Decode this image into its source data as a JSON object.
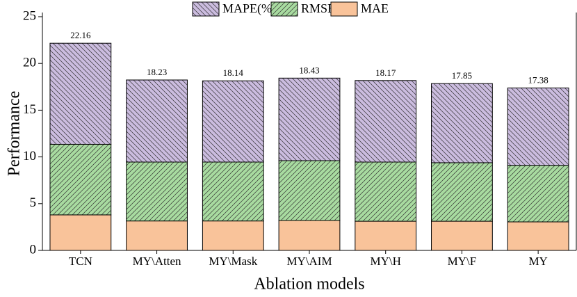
{
  "chart_data": {
    "type": "stacked_bar",
    "x_label": "Ablation models",
    "y_label": "Performance",
    "categories": [
      "TCN",
      "MY\\Atten",
      "MY\\Mask",
      "MY\\AIM",
      "MY\\H",
      "MY\\F",
      "MY"
    ],
    "series": [
      {
        "name": "MAE",
        "color": "#f9c39a",
        "hatch": "none",
        "values": [
          3.8,
          3.15,
          3.15,
          3.2,
          3.12,
          3.12,
          3.05
        ]
      },
      {
        "name": "RMSE",
        "color": "#a8dba0",
        "hatch": "forward",
        "values": [
          7.55,
          6.3,
          6.3,
          6.4,
          6.33,
          6.26,
          6.05
        ]
      },
      {
        "name": "MAPE(%)",
        "color": "#cbbcdf",
        "hatch": "backward",
        "values": [
          10.81,
          8.78,
          8.69,
          8.83,
          8.72,
          8.47,
          8.28
        ]
      }
    ],
    "totals": [
      22.16,
      18.23,
      18.14,
      18.43,
      18.17,
      17.85,
      17.38
    ],
    "ylim": [
      0,
      25
    ],
    "yticks": [
      0,
      5,
      10,
      15,
      20,
      25
    ],
    "legend": "top"
  }
}
